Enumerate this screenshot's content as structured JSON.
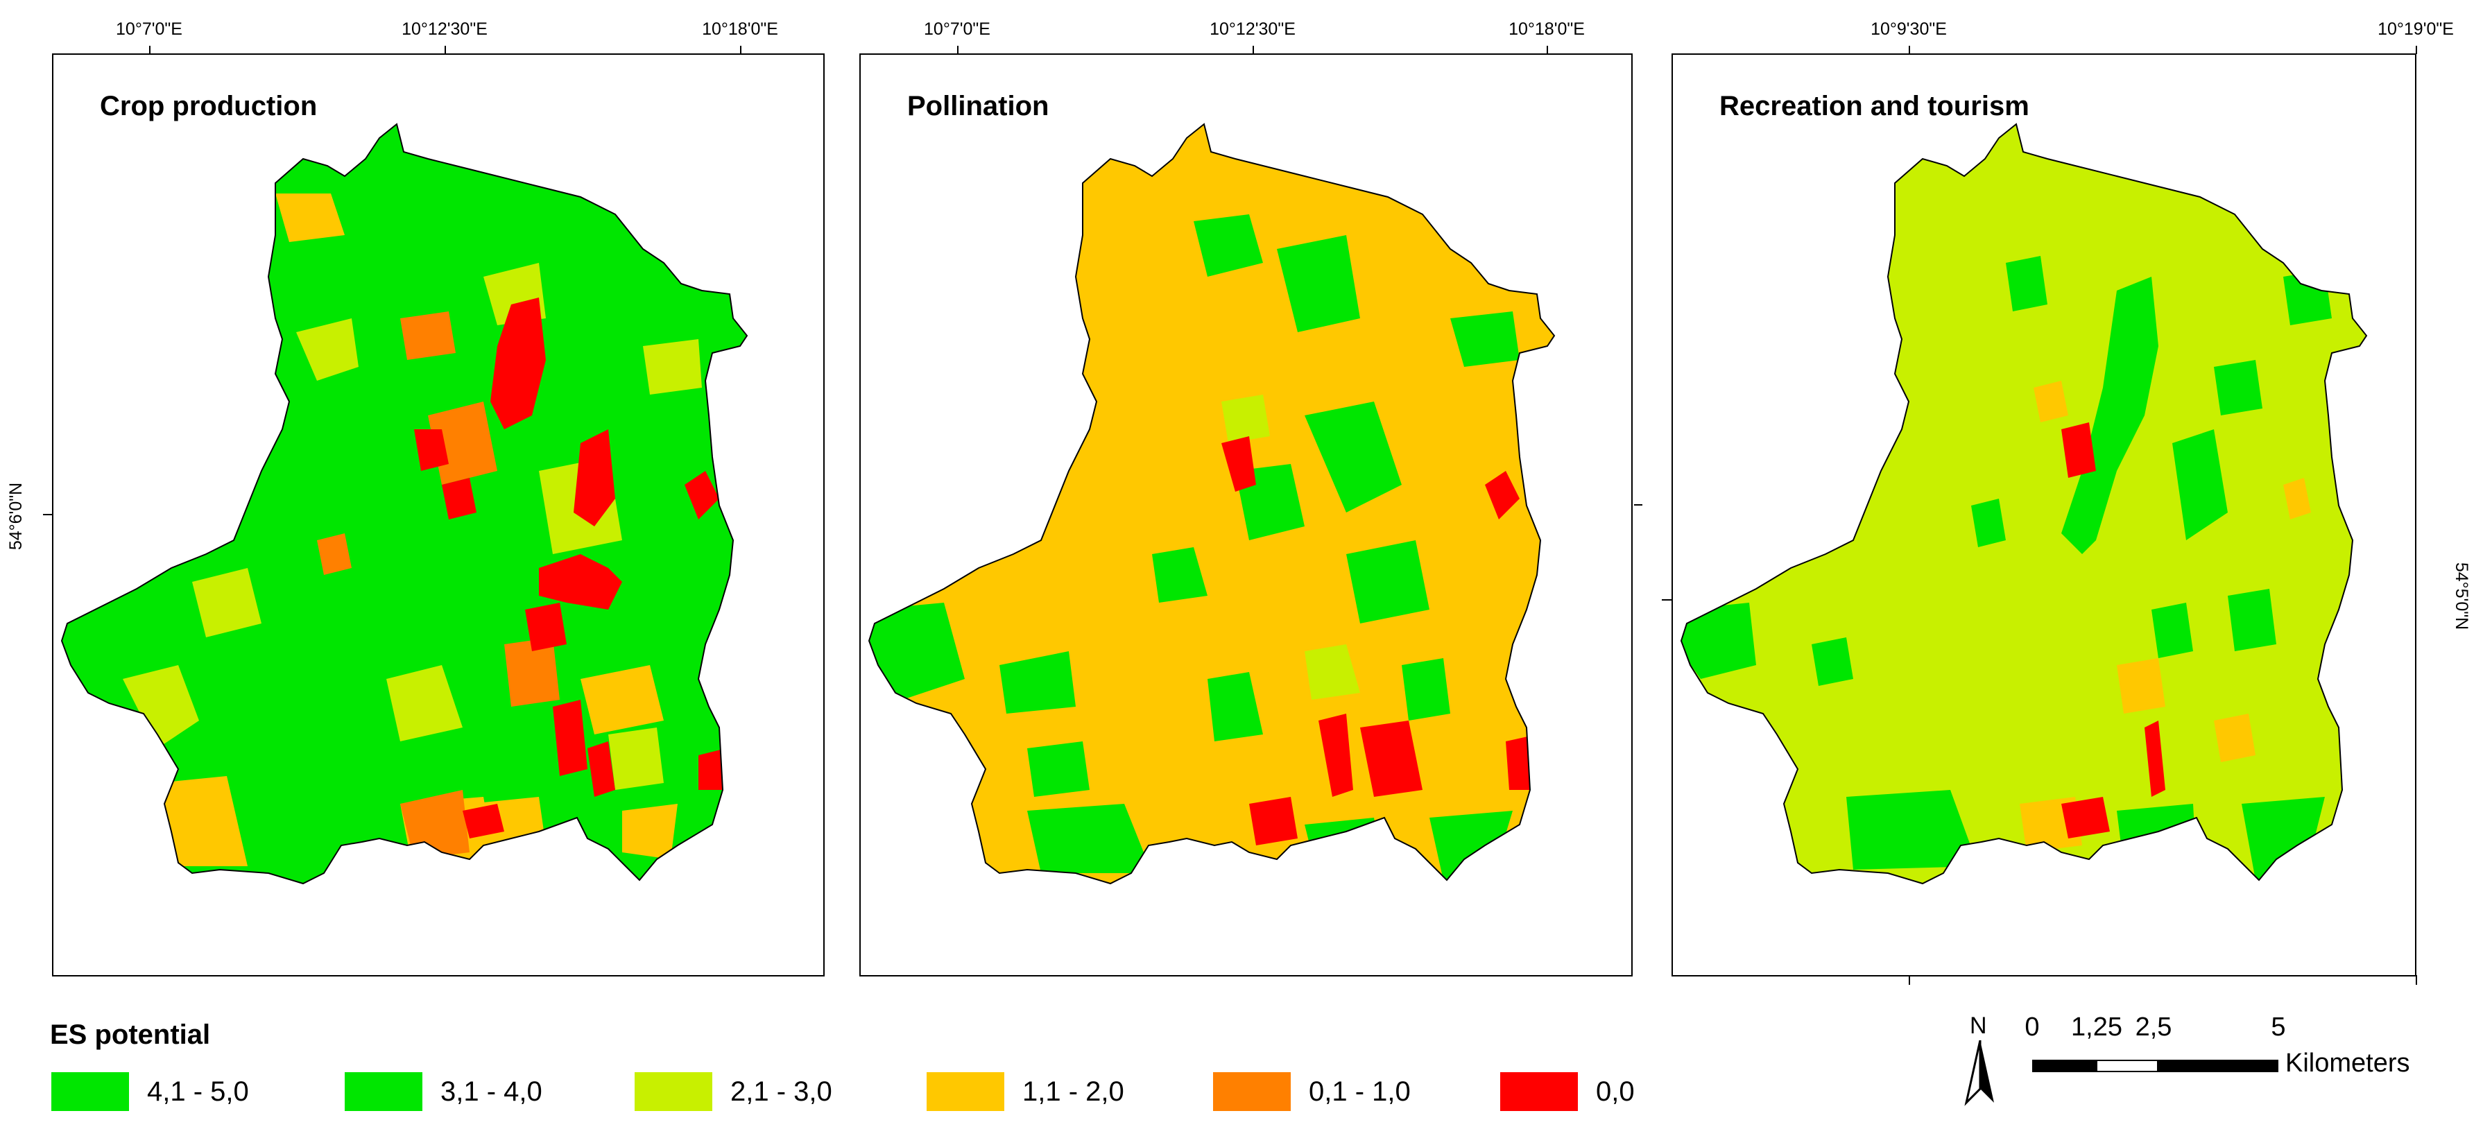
{
  "panels": [
    {
      "title": "Crop production",
      "base_color": "#00E600",
      "top_ticks": [
        "10°7'0\"E",
        "10°12'30\"E",
        "10°18'0\"E"
      ],
      "left_tick": "54°6'0\"N"
    },
    {
      "title": "Pollination",
      "base_color": "#FFC800",
      "top_ticks": [
        "10°7'0\"E",
        "10°12'30\"E",
        "10°18'0\"E"
      ]
    },
    {
      "title": "Recreation and tourism",
      "base_color": "#C8F000",
      "top_ticks": [
        "10°9'30\"E",
        "10°19'0\"E"
      ],
      "right_tick": "54°5'0\"N"
    }
  ],
  "legend": {
    "title": "ES potential",
    "classes": [
      {
        "label": "4,1 - 5,0",
        "color": "#00E600"
      },
      {
        "label": "3,1 - 4,0",
        "color": "#00E600"
      },
      {
        "label": "2,1 - 3,0",
        "color": "#C8F000"
      },
      {
        "label": "1,1 - 2,0",
        "color": "#FFC800"
      },
      {
        "label": "0,1 - 1,0",
        "color": "#FF8000"
      },
      {
        "label": "0,0",
        "color": "#FF0000"
      }
    ]
  },
  "scale_bar": {
    "north": "N",
    "labels": [
      "0",
      "1,25",
      "2,5",
      "5"
    ],
    "unit": "Kilometers"
  }
}
